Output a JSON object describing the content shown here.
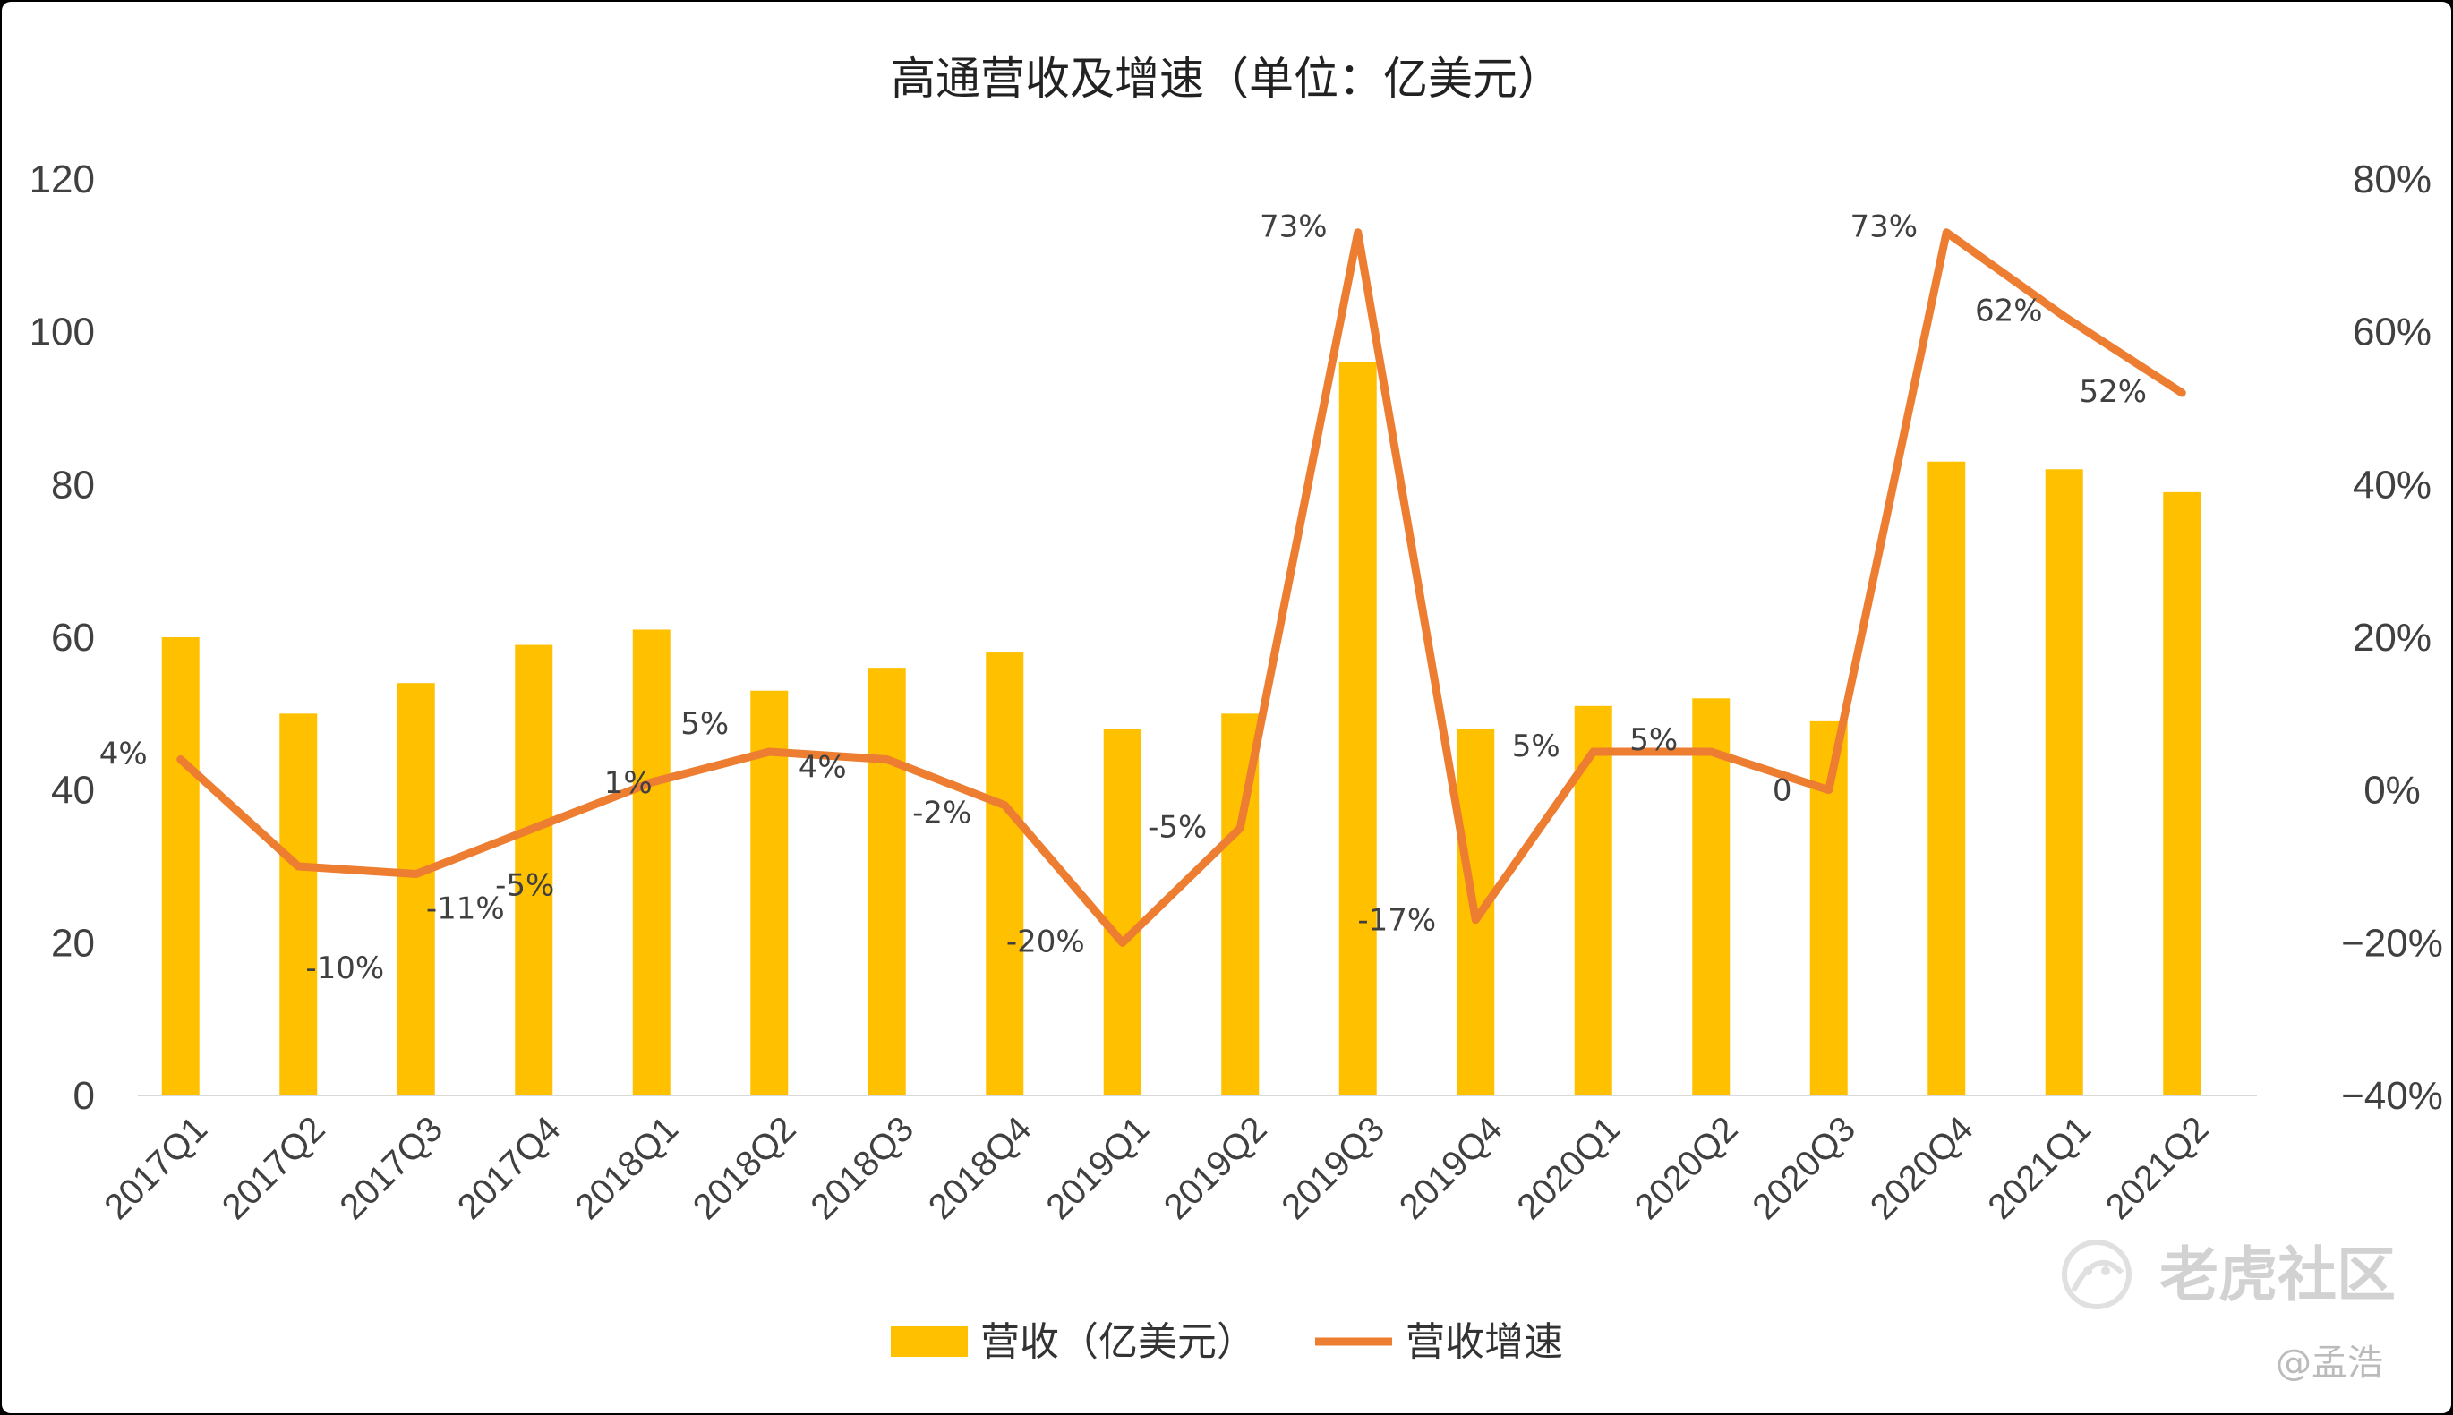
{
  "chart_data": {
    "type": "bar",
    "title": "高通营收及增速（单位：亿美元）",
    "categories": [
      "2017Q1",
      "2017Q2",
      "2017Q3",
      "2017Q4",
      "2018Q1",
      "2018Q2",
      "2018Q3",
      "2018Q4",
      "2019Q1",
      "2019Q2",
      "2019Q3",
      "2019Q4",
      "2020Q1",
      "2020Q2",
      "2020Q3",
      "2020Q4",
      "2021Q1",
      "2021Q2"
    ],
    "series": [
      {
        "name": "营收（亿美元）",
        "type": "bar",
        "axis": "left",
        "color": "#FFC000",
        "values": [
          60,
          50,
          54,
          59,
          61,
          53,
          56,
          58,
          48,
          50,
          96,
          48,
          51,
          52,
          49,
          83,
          82,
          79
        ]
      },
      {
        "name": "营收增速",
        "type": "line",
        "axis": "right",
        "color": "#ED7D31",
        "values": [
          4,
          -10,
          -11,
          -5,
          1,
          5,
          4,
          -2,
          -20,
          -5,
          73,
          -17,
          5,
          5,
          0,
          73,
          62,
          52
        ],
        "labels": [
          "4%",
          "-10%",
          "-11%",
          "-5%",
          "1%",
          "5%",
          "4%",
          "-2%",
          "-20%",
          "-5%",
          "73%",
          "-17%",
          "5%",
          "5%",
          "0",
          "73%",
          "62%",
          "52%"
        ]
      }
    ],
    "y_left": {
      "min": 0,
      "max": 120,
      "ticks": [
        "0",
        "20",
        "40",
        "60",
        "80",
        "100",
        "120"
      ]
    },
    "y_right": {
      "min": -40,
      "max": 80,
      "ticks": [
        "−40%",
        "−20%",
        "0%",
        "20%",
        "40%",
        "60%",
        "80%"
      ]
    },
    "grid": false,
    "legend_position": "bottom"
  },
  "watermark": {
    "brand": "老虎社区",
    "user": "@孟浩"
  }
}
